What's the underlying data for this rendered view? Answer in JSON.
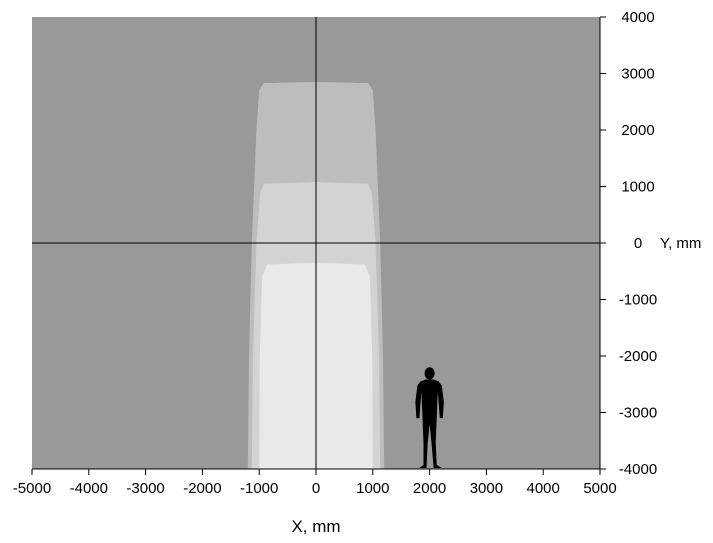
{
  "chart_data": {
    "type": "area",
    "title": "",
    "xlabel": "X, mm",
    "ylabel": "Y, mm",
    "xlim": [
      -5000,
      5000
    ],
    "ylim": [
      -4000,
      4000
    ],
    "x_ticks": [
      "-5000",
      "-4000",
      "-3000",
      "-2000",
      "-1000",
      "0",
      "1000",
      "2000",
      "3000",
      "4000",
      "5000"
    ],
    "y_ticks": [
      "4000",
      "3000",
      "2000",
      "1000",
      "0",
      "-1000",
      "-2000",
      "-3000",
      "-4000"
    ],
    "grid": false,
    "background_color": "#999999",
    "zones": [
      {
        "color": "#bdbdbd",
        "outline": [
          [
            -1200,
            -4000
          ],
          [
            -1180,
            -2000
          ],
          [
            -1130,
            0
          ],
          [
            -1050,
            2000
          ],
          [
            -1000,
            2700
          ],
          [
            -920,
            2830
          ],
          [
            0,
            2850
          ],
          [
            920,
            2830
          ],
          [
            1000,
            2700
          ],
          [
            1050,
            2000
          ],
          [
            1130,
            0
          ],
          [
            1180,
            -2000
          ],
          [
            1200,
            -4000
          ]
        ]
      },
      {
        "color": "#d3d3d3",
        "outline": [
          [
            -1130,
            -4000
          ],
          [
            -1110,
            -2000
          ],
          [
            -1050,
            0
          ],
          [
            -980,
            900
          ],
          [
            -920,
            1050
          ],
          [
            0,
            1080
          ],
          [
            920,
            1050
          ],
          [
            980,
            900
          ],
          [
            1050,
            0
          ],
          [
            1110,
            -2000
          ],
          [
            1130,
            -4000
          ]
        ]
      },
      {
        "color": "#e9e9e9",
        "outline": [
          [
            -1000,
            -4000
          ],
          [
            -990,
            -2000
          ],
          [
            -950,
            -600
          ],
          [
            -860,
            -380
          ],
          [
            0,
            -350
          ],
          [
            860,
            -380
          ],
          [
            950,
            -600
          ],
          [
            990,
            -2000
          ],
          [
            1000,
            -4000
          ]
        ]
      }
    ],
    "annotations": [
      {
        "type": "icon",
        "name": "person-silhouette-icon",
        "x": 2000,
        "y_base": -4000,
        "height_mm": 1800
      }
    ]
  }
}
